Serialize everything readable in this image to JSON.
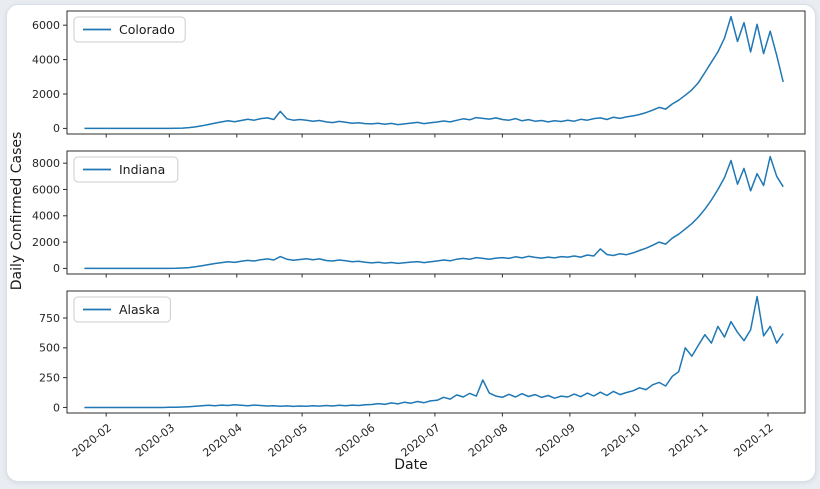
{
  "window": {
    "background_color": "#e9edf2",
    "card_background": "#ffffff",
    "card_border_color": "#d9dfe6"
  },
  "chart_data": {
    "type": "line",
    "title": "",
    "xlabel": "Date",
    "ylabel": "Daily Confirmed Cases",
    "grid": false,
    "legend_position": "upper left",
    "line_color": "#1f77b4",
    "frame_color": "#2e2e2e",
    "tick_text_color": "#262626",
    "x_tick_labels": [
      "2020-02",
      "2020-03",
      "2020-04",
      "2020-05",
      "2020-06",
      "2020-07",
      "2020-08",
      "2020-09",
      "2020-10",
      "2020-11",
      "2020-12"
    ],
    "x_tick_days": [
      10,
      39,
      70,
      100,
      131,
      161,
      192,
      223,
      253,
      284,
      314
    ],
    "x_domain_days": [
      -8,
      331
    ],
    "series_start_date": "2020-01-22",
    "sample_interval_days": 3,
    "subplots": [
      {
        "label": "Colorado",
        "y_ticks": [
          0,
          2000,
          4000,
          6000
        ],
        "y_max": 6500,
        "values": [
          0,
          0,
          0,
          0,
          0,
          0,
          0,
          0,
          0,
          0,
          0,
          0,
          1,
          3,
          8,
          18,
          45,
          90,
          150,
          230,
          310,
          380,
          440,
          390,
          460,
          530,
          480,
          570,
          610,
          520,
          990,
          560,
          480,
          520,
          470,
          420,
          460,
          380,
          340,
          410,
          360,
          300,
          330,
          280,
          260,
          300,
          240,
          290,
          220,
          260,
          310,
          350,
          280,
          330,
          370,
          430,
          380,
          470,
          560,
          500,
          630,
          580,
          540,
          610,
          520,
          480,
          570,
          440,
          510,
          420,
          460,
          380,
          450,
          400,
          470,
          420,
          530,
          480,
          570,
          610,
          520,
          650,
          580,
          670,
          730,
          810,
          920,
          1060,
          1220,
          1120,
          1420,
          1640,
          1930,
          2240,
          2650,
          3250,
          3850,
          4450,
          5250,
          6500,
          5050,
          6150,
          4450,
          6050,
          4350,
          5650,
          4250,
          2700
        ]
      },
      {
        "label": "Indiana",
        "y_ticks": [
          0,
          2000,
          4000,
          6000,
          8000
        ],
        "y_max": 8500,
        "values": [
          0,
          0,
          0,
          0,
          0,
          0,
          0,
          0,
          0,
          0,
          0,
          0,
          1,
          4,
          12,
          30,
          60,
          120,
          200,
          290,
          370,
          440,
          510,
          460,
          540,
          610,
          560,
          660,
          720,
          640,
          900,
          700,
          620,
          680,
          740,
          660,
          720,
          600,
          560,
          640,
          580,
          500,
          540,
          470,
          420,
          470,
          400,
          450,
          380,
          430,
          480,
          520,
          440,
          500,
          560,
          640,
          580,
          700,
          760,
          690,
          820,
          760,
          700,
          780,
          820,
          760,
          880,
          800,
          920,
          840,
          780,
          860,
          800,
          900,
          860,
          940,
          860,
          1020,
          940,
          1480,
          1060,
          980,
          1120,
          1040,
          1180,
          1360,
          1540,
          1760,
          2000,
          1850,
          2300,
          2600,
          3000,
          3400,
          3900,
          4500,
          5200,
          6000,
          6900,
          8200,
          6400,
          7600,
          5900,
          7200,
          6300,
          8500,
          7000,
          6200
        ]
      },
      {
        "label": "Alaska",
        "y_ticks": [
          0,
          250,
          500,
          750
        ],
        "y_max": 930,
        "values": [
          0,
          0,
          0,
          0,
          0,
          0,
          0,
          0,
          0,
          0,
          0,
          0,
          0,
          1,
          2,
          4,
          6,
          10,
          14,
          18,
          15,
          20,
          16,
          22,
          18,
          14,
          20,
          16,
          12,
          15,
          10,
          13,
          9,
          12,
          10,
          14,
          11,
          16,
          12,
          18,
          14,
          20,
          16,
          22,
          25,
          32,
          26,
          38,
          30,
          44,
          36,
          50,
          40,
          55,
          60,
          85,
          70,
          105,
          88,
          118,
          95,
          230,
          120,
          95,
          85,
          110,
          88,
          115,
          92,
          108,
          84,
          100,
          78,
          95,
          88,
          112,
          90,
          120,
          96,
          128,
          100,
          135,
          108,
          125,
          140,
          165,
          150,
          190,
          210,
          180,
          260,
          300,
          500,
          430,
          520,
          610,
          540,
          680,
          590,
          720,
          630,
          560,
          650,
          930,
          600,
          680,
          540,
          620
        ]
      }
    ]
  }
}
